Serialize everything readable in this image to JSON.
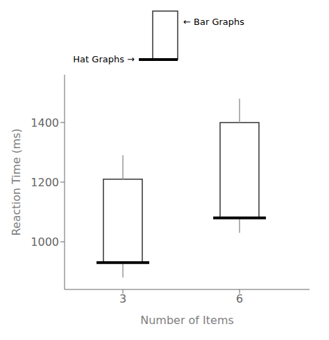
{
  "chart_data": {
    "type": "bar",
    "xlabel": "Number of Items",
    "ylabel": "Reaction Time (ms)",
    "x": [
      3,
      6
    ],
    "xlim": [
      1.5,
      7.8
    ],
    "xticks": [
      3,
      6
    ],
    "ylim": [
      840,
      1560
    ],
    "yticks": [
      1000,
      1200,
      1400
    ],
    "series": [
      {
        "type": "hat",
        "color": "black",
        "values": [
          930,
          1080
        ],
        "errors_below": [
          50,
          50
        ]
      },
      {
        "type": "bar",
        "color": "white",
        "values": [
          1210,
          1400
        ],
        "errors_above": [
          80,
          80
        ]
      }
    ],
    "annotations": [
      "← Bar Graphs",
      "Hat Graphs →"
    ]
  }
}
